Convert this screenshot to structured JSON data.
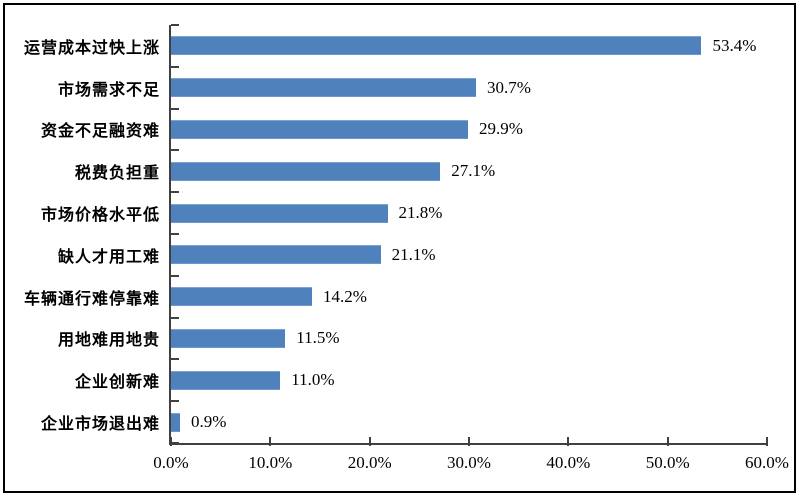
{
  "chart_data": {
    "type": "bar",
    "orientation": "horizontal",
    "title": "",
    "categories": [
      "运营成本过快上涨",
      "市场需求不足",
      "资金不足融资难",
      "税费负担重",
      "市场价格水平低",
      "缺人才用工难",
      "车辆通行难停靠难",
      "用地难用地贵",
      "企业创新难",
      "企业市场退出难"
    ],
    "values": [
      53.4,
      30.7,
      29.9,
      27.1,
      21.8,
      21.1,
      14.2,
      11.5,
      11.0,
      0.9
    ],
    "value_labels": [
      "53.4%",
      "30.7%",
      "29.9%",
      "27.1%",
      "21.8%",
      "21.1%",
      "14.2%",
      "11.5%",
      "11.0%",
      "0.9%"
    ],
    "x_ticks": [
      "0.0%",
      "10.0%",
      "20.0%",
      "30.0%",
      "40.0%",
      "50.0%",
      "60.0%"
    ],
    "xlim": [
      0,
      60
    ],
    "grid": false,
    "legend_position": "none",
    "bar_color": "#4f81bd",
    "bar_highlight": "#7da3d4",
    "axis_color": "#404040",
    "text_color": "#000000",
    "frame_color": "#000000",
    "background_color": "#ffffff"
  }
}
